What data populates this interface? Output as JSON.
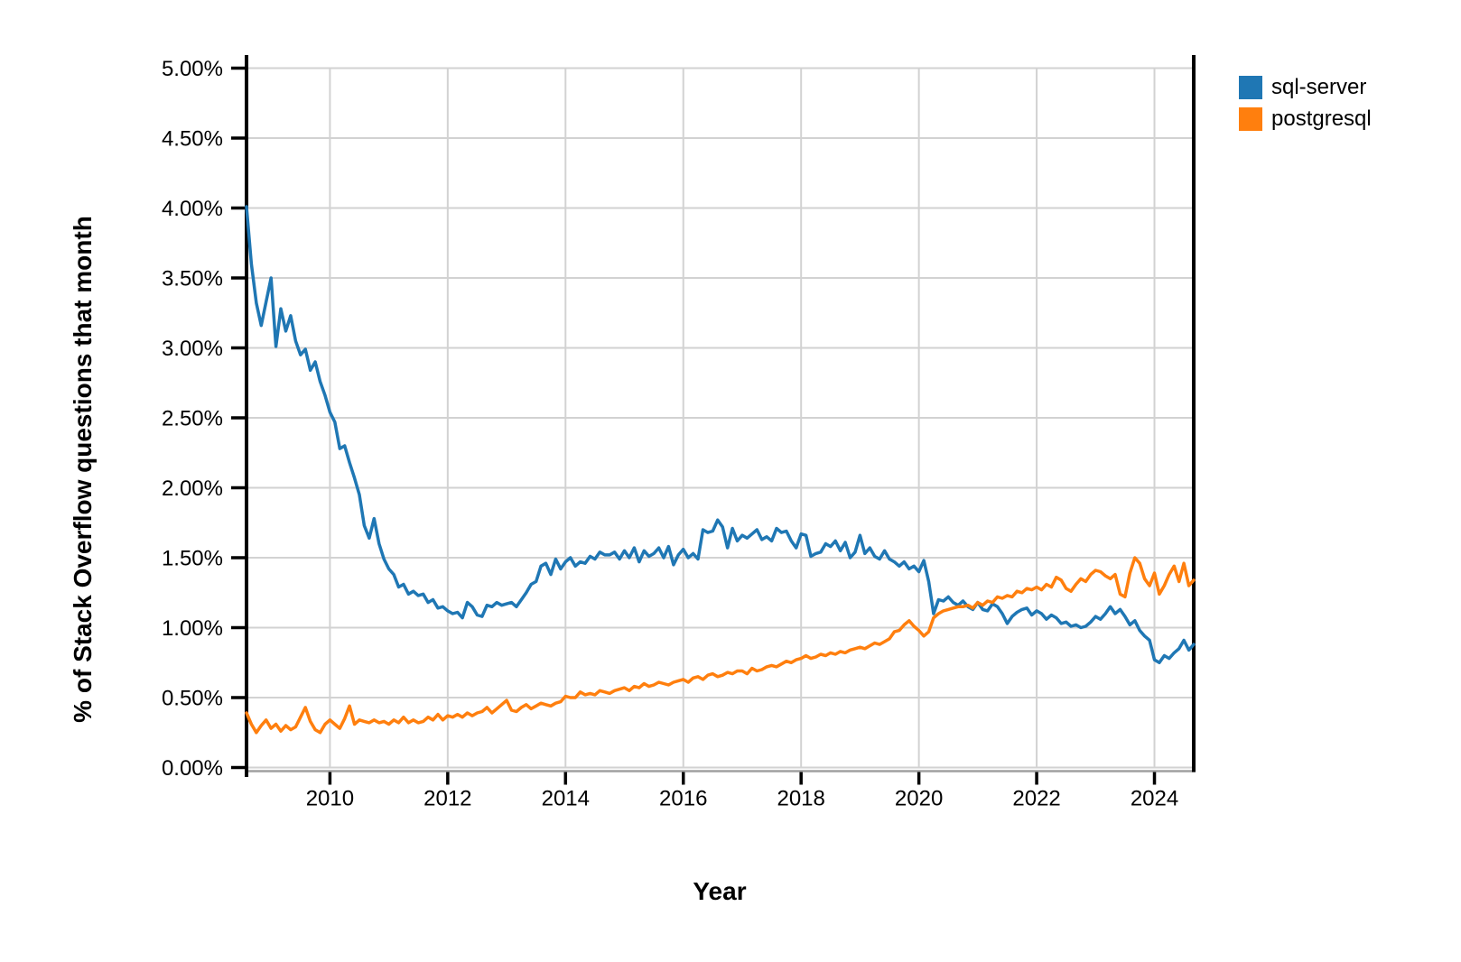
{
  "chart_data": {
    "type": "line",
    "title": "",
    "xlabel": "Year",
    "ylabel": "% of Stack Overflow questions that month",
    "x_start": 2008.5833,
    "x_step": 0.0833333,
    "xlim": [
      2008.5833,
      2024.6667
    ],
    "ylim": [
      0,
      5
    ],
    "grid": true,
    "grid_color": "#d2d2d2",
    "axis_color": "#000000",
    "domain_color": "#a0a0a0",
    "legend_position": "top-right",
    "x_ticks": [
      2010,
      2012,
      2014,
      2016,
      2018,
      2020,
      2022,
      2024
    ],
    "x_tick_labels": [
      "2010",
      "2012",
      "2014",
      "2016",
      "2018",
      "2020",
      "2022",
      "2024"
    ],
    "y_ticks": [
      0,
      0.5,
      1,
      1.5,
      2,
      2.5,
      3,
      3.5,
      4,
      4.5,
      5
    ],
    "y_tick_labels": [
      "0.00%",
      "0.50%",
      "1.00%",
      "1.50%",
      "2.00%",
      "2.50%",
      "3.00%",
      "3.50%",
      "4.00%",
      "4.50%",
      "5.00%"
    ],
    "series": [
      {
        "name": "sql-server",
        "color": "#1f77b4",
        "values": [
          4.01,
          3.6,
          3.32,
          3.16,
          3.33,
          3.5,
          3.01,
          3.28,
          3.12,
          3.23,
          3.05,
          2.95,
          2.99,
          2.84,
          2.9,
          2.76,
          2.66,
          2.54,
          2.47,
          2.28,
          2.3,
          2.18,
          2.07,
          1.95,
          1.73,
          1.64,
          1.78,
          1.6,
          1.49,
          1.42,
          1.38,
          1.29,
          1.31,
          1.24,
          1.26,
          1.23,
          1.24,
          1.18,
          1.2,
          1.14,
          1.15,
          1.12,
          1.1,
          1.11,
          1.07,
          1.18,
          1.15,
          1.09,
          1.08,
          1.16,
          1.15,
          1.18,
          1.16,
          1.17,
          1.18,
          1.15,
          1.2,
          1.25,
          1.31,
          1.33,
          1.44,
          1.46,
          1.38,
          1.49,
          1.42,
          1.47,
          1.5,
          1.44,
          1.47,
          1.46,
          1.51,
          1.49,
          1.54,
          1.52,
          1.52,
          1.54,
          1.49,
          1.55,
          1.5,
          1.57,
          1.47,
          1.55,
          1.51,
          1.53,
          1.57,
          1.5,
          1.58,
          1.45,
          1.52,
          1.56,
          1.5,
          1.53,
          1.49,
          1.7,
          1.68,
          1.69,
          1.77,
          1.72,
          1.57,
          1.71,
          1.62,
          1.66,
          1.64,
          1.67,
          1.7,
          1.63,
          1.65,
          1.62,
          1.71,
          1.68,
          1.69,
          1.62,
          1.57,
          1.67,
          1.66,
          1.51,
          1.53,
          1.54,
          1.6,
          1.58,
          1.62,
          1.55,
          1.61,
          1.5,
          1.54,
          1.66,
          1.53,
          1.57,
          1.51,
          1.49,
          1.55,
          1.49,
          1.47,
          1.44,
          1.47,
          1.42,
          1.44,
          1.4,
          1.48,
          1.33,
          1.1,
          1.2,
          1.19,
          1.22,
          1.18,
          1.16,
          1.19,
          1.15,
          1.13,
          1.18,
          1.13,
          1.12,
          1.17,
          1.15,
          1.1,
          1.03,
          1.08,
          1.11,
          1.13,
          1.14,
          1.09,
          1.12,
          1.1,
          1.06,
          1.09,
          1.07,
          1.03,
          1.04,
          1.01,
          1.02,
          1.0,
          1.01,
          1.04,
          1.08,
          1.06,
          1.1,
          1.15,
          1.1,
          1.13,
          1.08,
          1.02,
          1.05,
          0.98,
          0.94,
          0.91,
          0.77,
          0.75,
          0.8,
          0.78,
          0.82,
          0.85,
          0.91,
          0.84,
          0.88
        ]
      },
      {
        "name": "postgresql",
        "color": "#ff7f0e",
        "values": [
          0.39,
          0.31,
          0.25,
          0.3,
          0.34,
          0.28,
          0.31,
          0.26,
          0.3,
          0.27,
          0.29,
          0.36,
          0.43,
          0.33,
          0.27,
          0.25,
          0.31,
          0.34,
          0.31,
          0.28,
          0.35,
          0.44,
          0.31,
          0.34,
          0.33,
          0.32,
          0.34,
          0.32,
          0.33,
          0.31,
          0.34,
          0.32,
          0.36,
          0.32,
          0.34,
          0.32,
          0.33,
          0.36,
          0.34,
          0.38,
          0.34,
          0.37,
          0.36,
          0.38,
          0.36,
          0.39,
          0.37,
          0.39,
          0.4,
          0.43,
          0.39,
          0.42,
          0.45,
          0.48,
          0.41,
          0.4,
          0.43,
          0.45,
          0.42,
          0.44,
          0.46,
          0.45,
          0.44,
          0.46,
          0.47,
          0.51,
          0.5,
          0.5,
          0.54,
          0.52,
          0.53,
          0.52,
          0.55,
          0.54,
          0.53,
          0.55,
          0.56,
          0.57,
          0.55,
          0.58,
          0.57,
          0.6,
          0.58,
          0.59,
          0.61,
          0.6,
          0.59,
          0.61,
          0.62,
          0.63,
          0.61,
          0.64,
          0.65,
          0.63,
          0.66,
          0.67,
          0.65,
          0.66,
          0.68,
          0.67,
          0.69,
          0.69,
          0.67,
          0.71,
          0.69,
          0.7,
          0.72,
          0.73,
          0.72,
          0.74,
          0.76,
          0.75,
          0.77,
          0.78,
          0.8,
          0.78,
          0.79,
          0.81,
          0.8,
          0.82,
          0.81,
          0.83,
          0.82,
          0.84,
          0.85,
          0.86,
          0.85,
          0.87,
          0.89,
          0.88,
          0.9,
          0.92,
          0.97,
          0.98,
          1.02,
          1.05,
          1.01,
          0.98,
          0.94,
          0.97,
          1.07,
          1.1,
          1.12,
          1.13,
          1.14,
          1.15,
          1.15,
          1.16,
          1.14,
          1.18,
          1.16,
          1.19,
          1.18,
          1.22,
          1.21,
          1.23,
          1.22,
          1.26,
          1.25,
          1.28,
          1.27,
          1.29,
          1.27,
          1.31,
          1.29,
          1.36,
          1.34,
          1.28,
          1.26,
          1.31,
          1.35,
          1.33,
          1.38,
          1.41,
          1.4,
          1.37,
          1.35,
          1.38,
          1.24,
          1.22,
          1.39,
          1.5,
          1.46,
          1.35,
          1.3,
          1.39,
          1.24,
          1.3,
          1.38,
          1.44,
          1.33,
          1.46,
          1.3,
          1.34
        ]
      }
    ]
  }
}
